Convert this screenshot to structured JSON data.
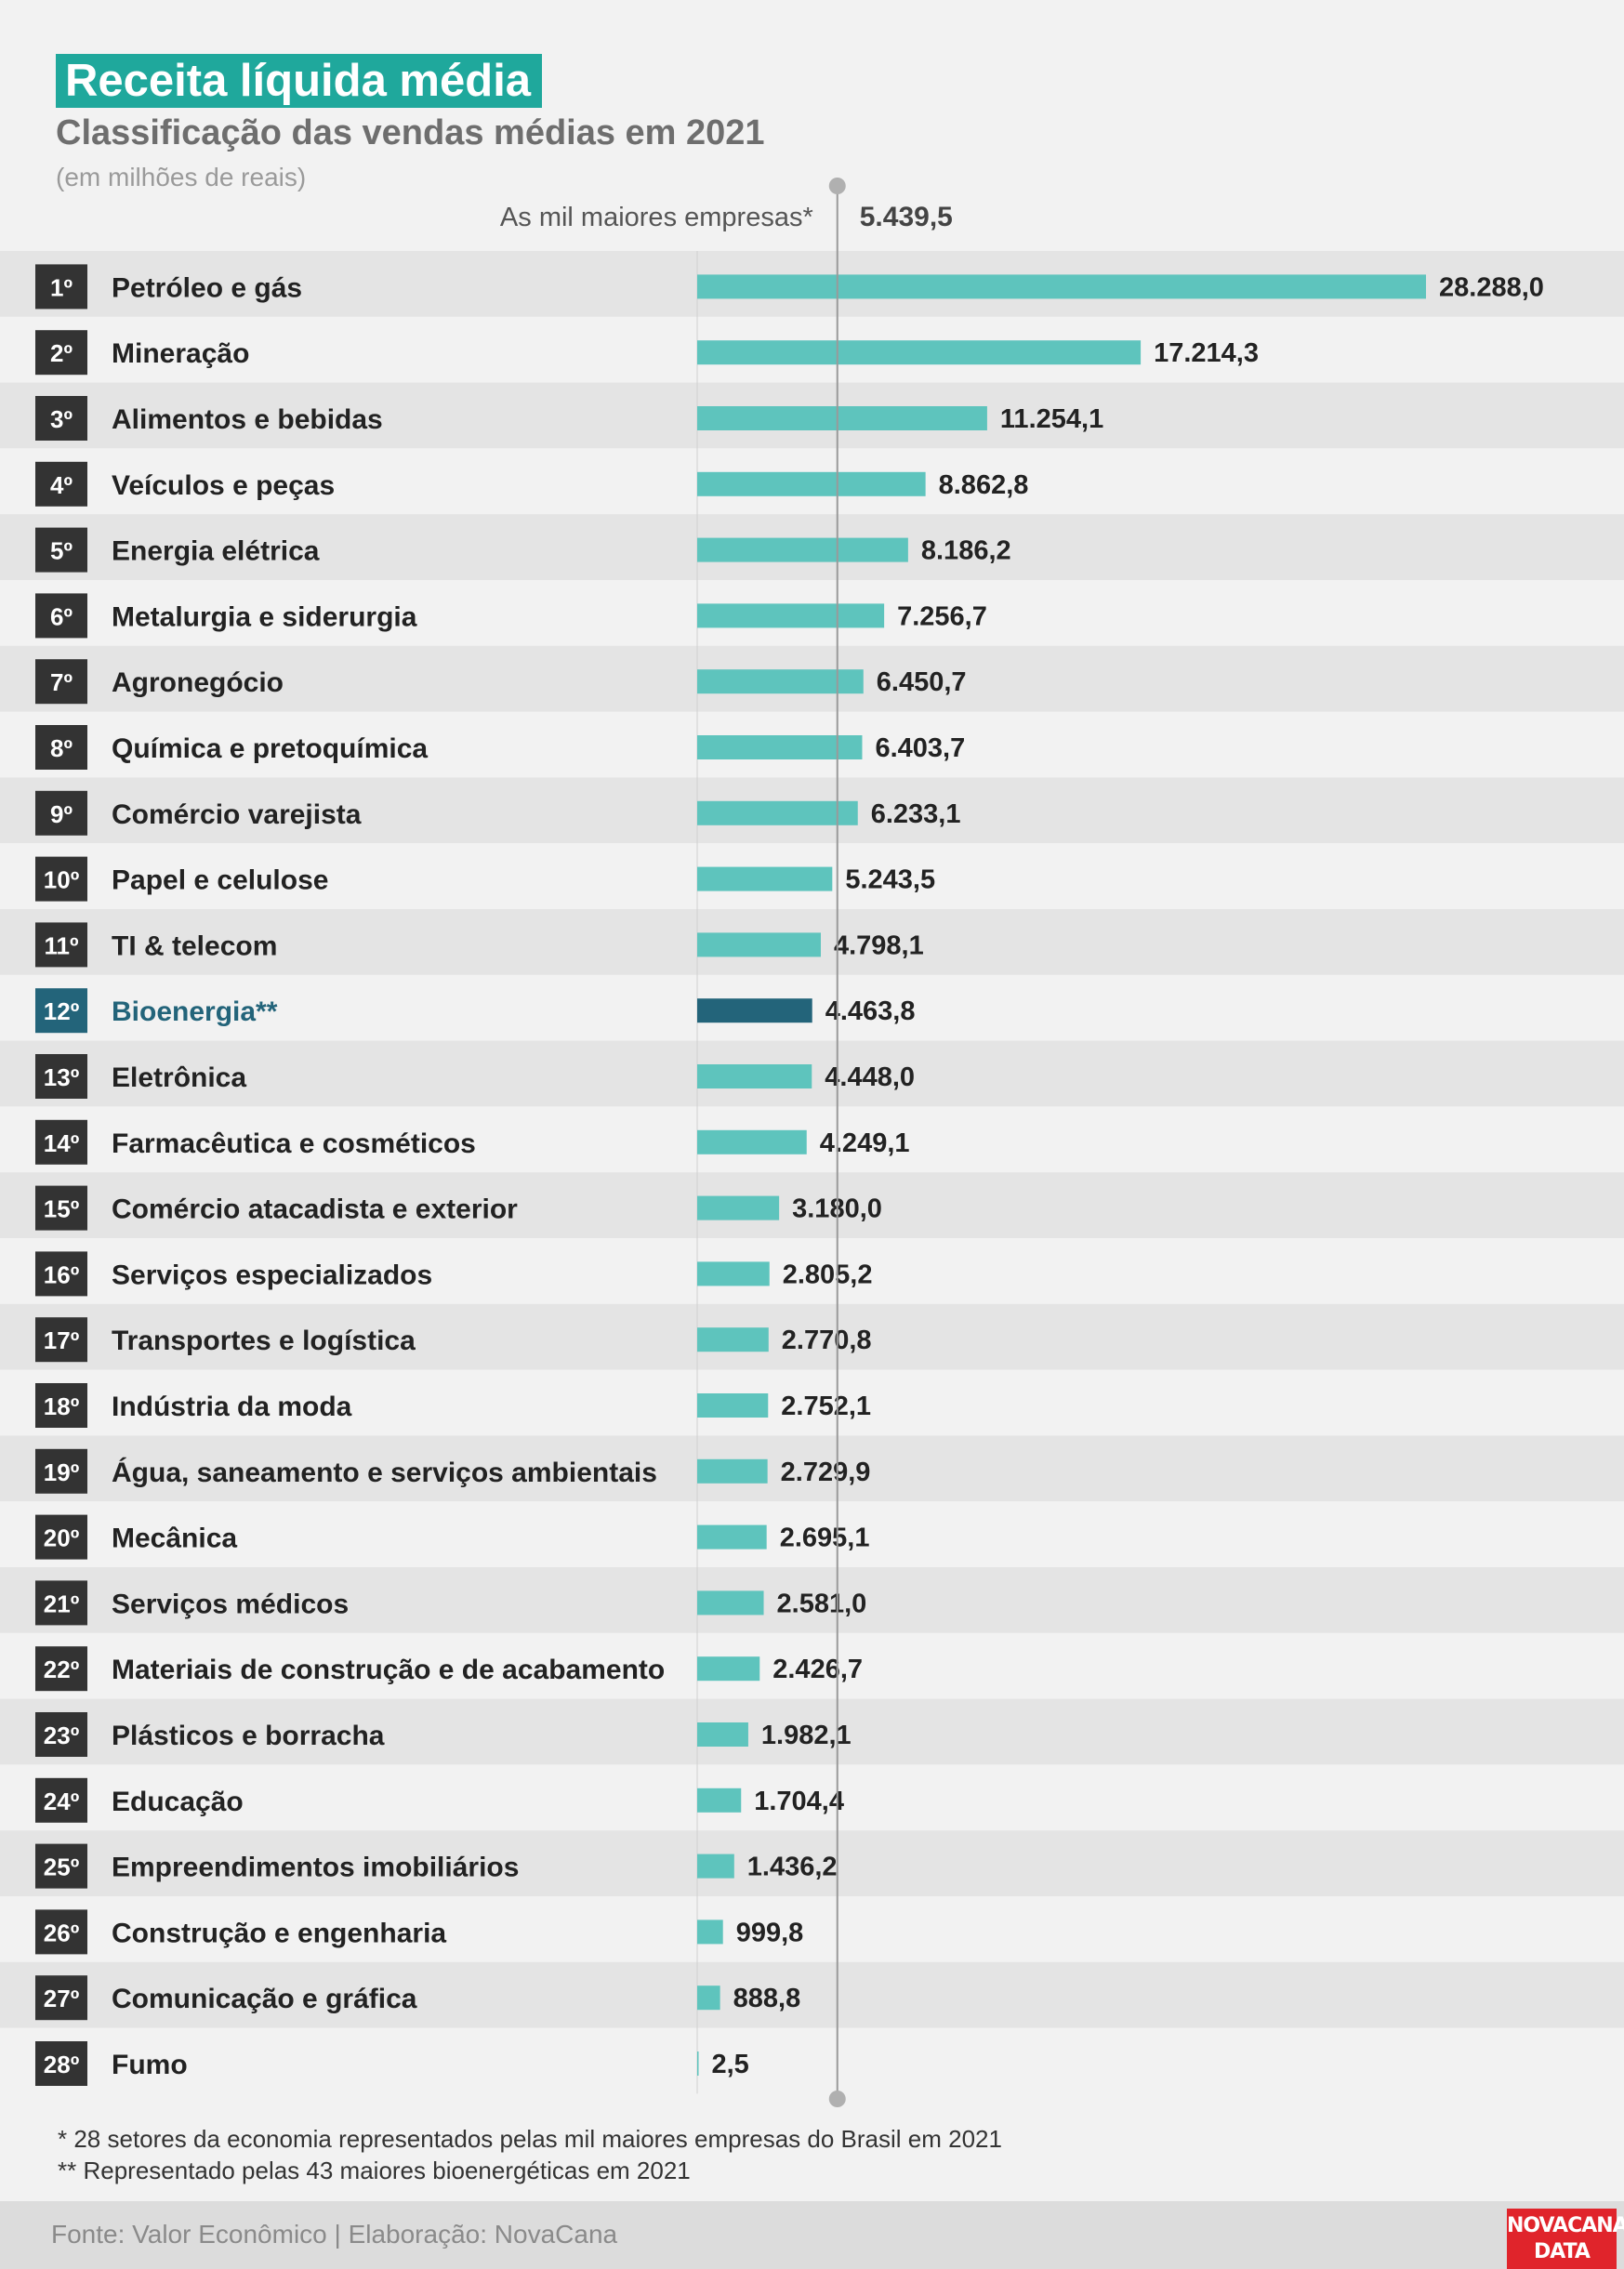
{
  "header": {
    "title": "Receita líquida média",
    "subtitle": "Classificação das vendas médias em 2021",
    "unit": "(em milhões de reais)"
  },
  "reference": {
    "label": "As mil maiores empresas*",
    "value_label": "5.439,5"
  },
  "colors": {
    "bar": "#5ec4bd",
    "highlight": "#23647a",
    "title_bg": "#1fa89c",
    "rank_bg": "#333333",
    "row_dark": "#e4e4e4",
    "row_light": "#f2f2f2",
    "logo_bg": "#e0242b"
  },
  "chart_data": {
    "type": "bar",
    "orientation": "horizontal",
    "title": "Receita líquida média",
    "reference_line": {
      "label": "As mil maiores empresas*",
      "value": 5439.5
    },
    "xlim": [
      0,
      28288.0
    ],
    "grid": false,
    "highlight_rank": "12º",
    "rows": [
      {
        "rank": "1º",
        "label": "Petróleo e gás",
        "value": 28288.0,
        "value_label": "28.288,0"
      },
      {
        "rank": "2º",
        "label": "Mineração",
        "value": 17214.3,
        "value_label": "17.214,3"
      },
      {
        "rank": "3º",
        "label": "Alimentos e bebidas",
        "value": 11254.1,
        "value_label": "11.254,1"
      },
      {
        "rank": "4º",
        "label": "Veículos e peças",
        "value": 8862.8,
        "value_label": "8.862,8"
      },
      {
        "rank": "5º",
        "label": "Energia elétrica",
        "value": 8186.2,
        "value_label": "8.186,2"
      },
      {
        "rank": "6º",
        "label": "Metalurgia e siderurgia",
        "value": 7256.7,
        "value_label": "7.256,7"
      },
      {
        "rank": "7º",
        "label": "Agronegócio",
        "value": 6450.7,
        "value_label": "6.450,7"
      },
      {
        "rank": "8º",
        "label": "Química e pretoquímica",
        "value": 6403.7,
        "value_label": "6.403,7"
      },
      {
        "rank": "9º",
        "label": "Comércio varejista",
        "value": 6233.1,
        "value_label": "6.233,1"
      },
      {
        "rank": "10º",
        "label": "Papel e celulose",
        "value": 5243.5,
        "value_label": "5.243,5"
      },
      {
        "rank": "11º",
        "label": "TI & telecom",
        "value": 4798.1,
        "value_label": "4.798,1"
      },
      {
        "rank": "12º",
        "label": "Bioenergia**",
        "value": 4463.8,
        "value_label": "4.463,8",
        "highlight": true
      },
      {
        "rank": "13º",
        "label": "Eletrônica",
        "value": 4448.0,
        "value_label": "4.448,0"
      },
      {
        "rank": "14º",
        "label": "Farmacêutica e cosméticos",
        "value": 4249.1,
        "value_label": "4.249,1"
      },
      {
        "rank": "15º",
        "label": "Comércio atacadista e exterior",
        "value": 3180.0,
        "value_label": "3.180,0"
      },
      {
        "rank": "16º",
        "label": "Serviços especializados",
        "value": 2805.2,
        "value_label": "2.805,2"
      },
      {
        "rank": "17º",
        "label": "Transportes e logística",
        "value": 2770.8,
        "value_label": "2.770,8"
      },
      {
        "rank": "18º",
        "label": "Indústria da moda",
        "value": 2752.1,
        "value_label": "2.752,1"
      },
      {
        "rank": "19º",
        "label": "Água, saneamento e serviços ambientais",
        "value": 2729.9,
        "value_label": "2.729,9"
      },
      {
        "rank": "20º",
        "label": "Mecânica",
        "value": 2695.1,
        "value_label": "2.695,1"
      },
      {
        "rank": "21º",
        "label": "Serviços médicos",
        "value": 2581.0,
        "value_label": "2.581,0"
      },
      {
        "rank": "22º",
        "label": "Materiais de construção e de acabamento",
        "value": 2426.7,
        "value_label": "2.426,7"
      },
      {
        "rank": "23º",
        "label": "Plásticos e borracha",
        "value": 1982.1,
        "value_label": "1.982,1"
      },
      {
        "rank": "24º",
        "label": "Educação",
        "value": 1704.4,
        "value_label": "1.704,4"
      },
      {
        "rank": "25º",
        "label": "Empreendimentos imobiliários",
        "value": 1436.2,
        "value_label": "1.436,2"
      },
      {
        "rank": "26º",
        "label": "Construção e engenharia",
        "value": 999.8,
        "value_label": "999,8"
      },
      {
        "rank": "27º",
        "label": "Comunicação e gráfica",
        "value": 888.8,
        "value_label": "888,8"
      },
      {
        "rank": "28º",
        "label": "Fumo",
        "value": 2.5,
        "value_label": "2,5"
      }
    ]
  },
  "footnotes": {
    "note1": "* 28 setores da economia representados pelas mil maiores empresas do Brasil em 2021",
    "note2": "** Representado pelas 43 maiores bioenergéticas em 2021"
  },
  "footer": {
    "source": "Fonte: Valor Econômico | Elaboração: NovaCana",
    "logo_line1": "NOVACANA",
    "logo_line2": "DATA"
  }
}
